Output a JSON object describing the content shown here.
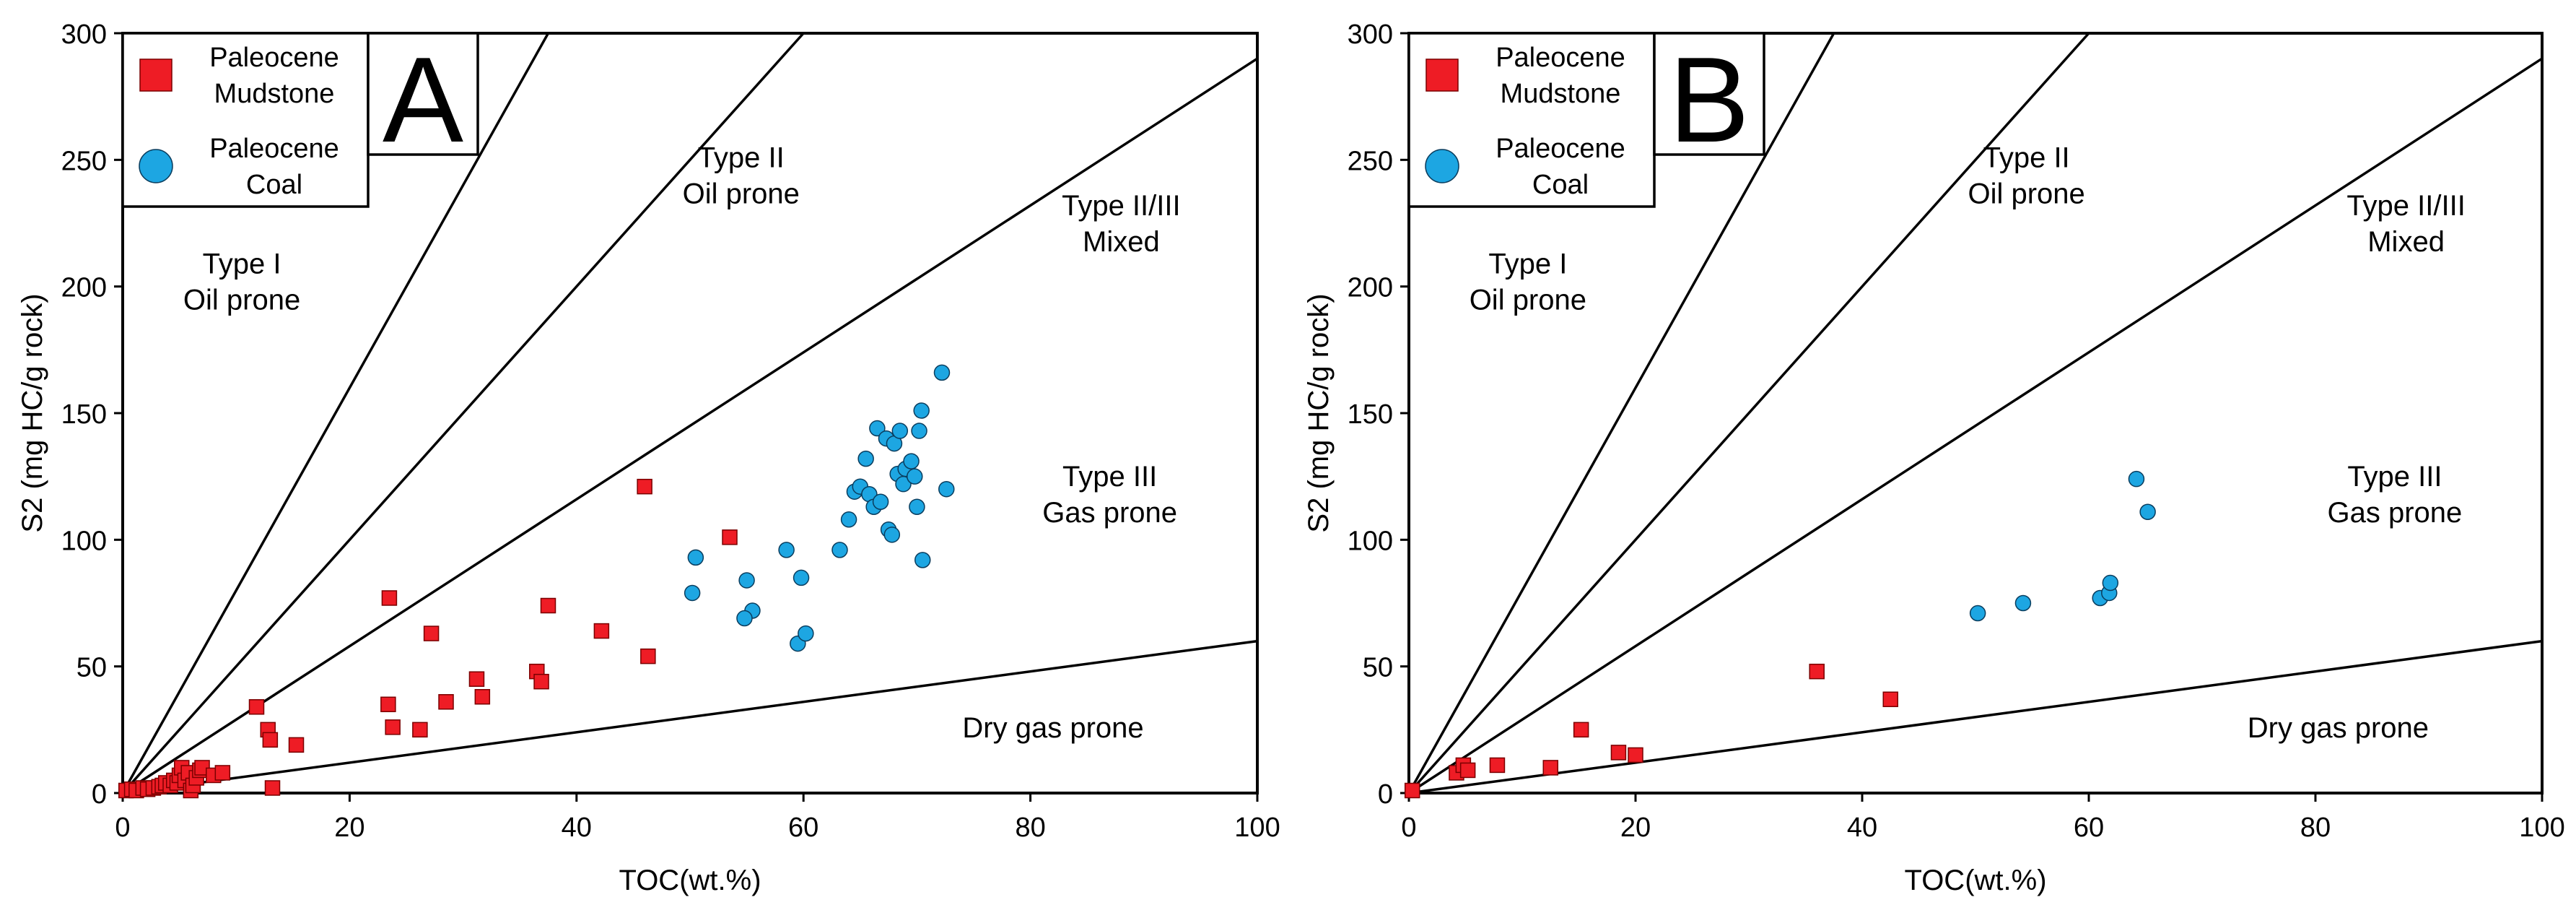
{
  "chart_data": [
    {
      "type": "scatter",
      "panel_label": "A",
      "xlabel": "TOC(wt.%)",
      "ylabel": "S2 (mg HC/g rock)",
      "xlim": [
        0,
        100
      ],
      "ylim": [
        0,
        300
      ],
      "x_ticks": [
        0,
        20,
        40,
        60,
        80,
        100
      ],
      "y_ticks": [
        0,
        50,
        100,
        150,
        200,
        250,
        300
      ],
      "zone_lines": [
        {
          "slope": 8
        },
        {
          "slope": 5
        },
        {
          "slope": 2.9
        },
        {
          "slope": 0.6
        }
      ],
      "zone_labels": [
        {
          "lines": [
            "Type I",
            "Oil prone"
          ],
          "x": 10.5,
          "y": 198
        },
        {
          "lines": [
            "Type II",
            "Oil prone"
          ],
          "x": 54.5,
          "y": 240
        },
        {
          "lines": [
            "Type II/III",
            "Mixed"
          ],
          "x": 88,
          "y": 221
        },
        {
          "lines": [
            "Type III",
            "Gas prone"
          ],
          "x": 87,
          "y": 114
        },
        {
          "lines": [
            "Dry gas prone"
          ],
          "x": 82,
          "y": 22
        }
      ],
      "legend": {
        "position": "top-left",
        "entries": [
          {
            "label": [
              "Paleocene",
              "Mudstone"
            ],
            "marker": "square",
            "color": "#EE1C25"
          },
          {
            "label": [
              "Paleocene",
              "Coal"
            ],
            "marker": "circle",
            "color": "#1DA6E2"
          }
        ]
      },
      "series": [
        {
          "name": "Paleocene Mudstone",
          "marker": "square",
          "color": "#EE1C25",
          "points": [
            [
              0.3,
              1
            ],
            [
              0.8,
              1.5
            ],
            [
              1.2,
              1
            ],
            [
              1.8,
              2
            ],
            [
              2.2,
              1.5
            ],
            [
              2.7,
              2
            ],
            [
              3.2,
              2.5
            ],
            [
              3.5,
              3
            ],
            [
              3.8,
              4
            ],
            [
              4.2,
              3
            ],
            [
              4.5,
              5
            ],
            [
              4.8,
              4
            ],
            [
              5.0,
              7
            ],
            [
              5.2,
              10
            ],
            [
              5.5,
              5
            ],
            [
              5.8,
              8
            ],
            [
              6.0,
              1
            ],
            [
              6.2,
              3
            ],
            [
              6.5,
              6
            ],
            [
              6.8,
              9
            ],
            [
              7.0,
              10
            ],
            [
              8.0,
              7
            ],
            [
              8.8,
              8
            ],
            [
              11.8,
              34
            ],
            [
              12.8,
              25
            ],
            [
              13.0,
              21
            ],
            [
              13.2,
              2
            ],
            [
              15.3,
              19
            ],
            [
              23.5,
              77
            ],
            [
              23.4,
              35
            ],
            [
              23.8,
              26
            ],
            [
              26.2,
              25
            ],
            [
              27.2,
              63
            ],
            [
              28.5,
              36
            ],
            [
              31.2,
              45
            ],
            [
              31.7,
              38
            ],
            [
              36.5,
              48
            ],
            [
              36.9,
              44
            ],
            [
              37.5,
              74
            ],
            [
              42.2,
              64
            ],
            [
              46.0,
              121
            ],
            [
              46.3,
              54
            ],
            [
              53.5,
              101
            ]
          ]
        },
        {
          "name": "Paleocene Coal",
          "marker": "circle",
          "color": "#1DA6E2",
          "points": [
            [
              50.5,
              93
            ],
            [
              50.2,
              79
            ],
            [
              55.0,
              84
            ],
            [
              55.5,
              72
            ],
            [
              54.8,
              69
            ],
            [
              58.5,
              96
            ],
            [
              59.8,
              85
            ],
            [
              59.5,
              59
            ],
            [
              60.2,
              63
            ],
            [
              63.2,
              96
            ],
            [
              64.0,
              108
            ],
            [
              64.5,
              119
            ],
            [
              65.0,
              121
            ],
            [
              65.5,
              132
            ],
            [
              65.8,
              118
            ],
            [
              66.2,
              113
            ],
            [
              66.5,
              144
            ],
            [
              66.8,
              115
            ],
            [
              67.3,
              140
            ],
            [
              67.5,
              104
            ],
            [
              67.8,
              102
            ],
            [
              68.0,
              138
            ],
            [
              68.3,
              126
            ],
            [
              68.5,
              143
            ],
            [
              68.8,
              122
            ],
            [
              69.0,
              128
            ],
            [
              69.5,
              131
            ],
            [
              69.8,
              125
            ],
            [
              70.0,
              113
            ],
            [
              70.2,
              143
            ],
            [
              70.4,
              151
            ],
            [
              70.5,
              92
            ],
            [
              72.2,
              166
            ],
            [
              72.6,
              120
            ]
          ]
        }
      ]
    },
    {
      "type": "scatter",
      "panel_label": "B",
      "xlabel": "TOC(wt.%)",
      "ylabel": "S2 (mg HC/g rock)",
      "xlim": [
        0,
        100
      ],
      "ylim": [
        0,
        300
      ],
      "x_ticks": [
        0,
        20,
        40,
        60,
        80,
        100
      ],
      "y_ticks": [
        0,
        50,
        100,
        150,
        200,
        250,
        300
      ],
      "zone_lines": [
        {
          "slope": 8
        },
        {
          "slope": 5
        },
        {
          "slope": 2.9
        },
        {
          "slope": 0.6
        }
      ],
      "zone_labels": [
        {
          "lines": [
            "Type I",
            "Oil prone"
          ],
          "x": 10.5,
          "y": 198
        },
        {
          "lines": [
            "Type II",
            "Oil prone"
          ],
          "x": 54.5,
          "y": 240
        },
        {
          "lines": [
            "Type II/III",
            "Mixed"
          ],
          "x": 88,
          "y": 221
        },
        {
          "lines": [
            "Type III",
            "Gas prone"
          ],
          "x": 87,
          "y": 114
        },
        {
          "lines": [
            "Dry gas prone"
          ],
          "x": 82,
          "y": 22
        }
      ],
      "legend": {
        "position": "top-left",
        "entries": [
          {
            "label": [
              "Paleocene",
              "Mudstone"
            ],
            "marker": "square",
            "color": "#EE1C25"
          },
          {
            "label": [
              "Paleocene",
              "Coal"
            ],
            "marker": "circle",
            "color": "#1DA6E2"
          }
        ]
      },
      "series": [
        {
          "name": "Paleocene Mudstone",
          "marker": "square",
          "color": "#EE1C25",
          "points": [
            [
              0.3,
              1
            ],
            [
              4.2,
              8
            ],
            [
              4.8,
              11
            ],
            [
              5.2,
              9
            ],
            [
              7.8,
              11
            ],
            [
              12.5,
              10
            ],
            [
              15.2,
              25
            ],
            [
              18.5,
              16
            ],
            [
              20.0,
              15
            ],
            [
              36.0,
              48
            ],
            [
              42.5,
              37
            ]
          ]
        },
        {
          "name": "Paleocene Coal",
          "marker": "circle",
          "color": "#1DA6E2",
          "points": [
            [
              50.2,
              71
            ],
            [
              54.2,
              75
            ],
            [
              61.0,
              77
            ],
            [
              61.8,
              79
            ],
            [
              61.9,
              83
            ],
            [
              64.2,
              124
            ],
            [
              65.2,
              111
            ]
          ]
        }
      ]
    }
  ]
}
